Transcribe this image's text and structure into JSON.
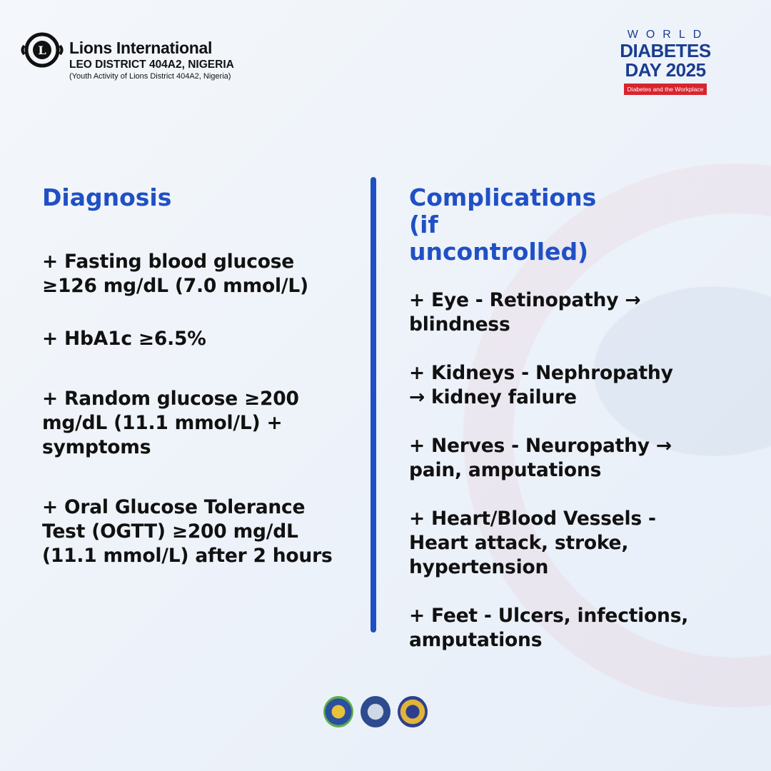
{
  "header": {
    "org_name": "Lions International",
    "district": "LEO DISTRICT 404A2, NIGERIA",
    "tagline": "(Youth Activity of Lions District 404A2, Nigeria)",
    "event": {
      "line1": "WORLD",
      "line2": "DIABETES",
      "line3": "DAY 2025",
      "theme": "Diabetes and the Workplace"
    }
  },
  "diagnosis": {
    "title": "Diagnosis",
    "items": [
      "+ Fasting blood glucose ≥126 mg/dL (7.0 mmol/L)",
      "+ HbA1c ≥6.5%",
      "+ Random glucose ≥200 mg/dL (11.1 mmol/L) + symptoms",
      "+ Oral Glucose Tolerance Test (OGTT) ≥200 mg/dL (11.1 mmol/L) after 2 hours"
    ]
  },
  "complications": {
    "title": "Complications (if uncontrolled)",
    "items": [
      "+ Eye - Retinopathy → blindness",
      "+ Kidneys - Nephropathy → kidney failure",
      "+ Nerves - Neuropathy → pain, amputations",
      "+ Heart/Blood Vessels - Heart attack, stroke, hypertension",
      "+ Feet - Ulcers, infections, amputations"
    ]
  },
  "colors": {
    "accent": "#2050c4",
    "divider": "#1f4fc4",
    "theme_badge": "#d8242e",
    "event_text": "#1a3d8f"
  },
  "footer": {
    "logos": [
      "district-emblem",
      "leo-logo",
      "club-emblem"
    ]
  }
}
